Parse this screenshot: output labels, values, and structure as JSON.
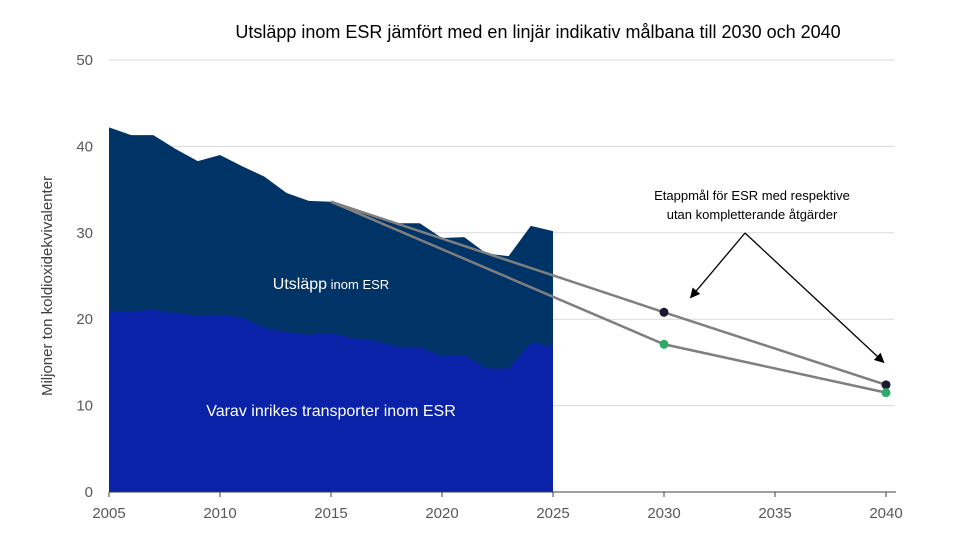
{
  "chart_data": {
    "type": "area",
    "title": "Utsläpp inom ESR jämfört med en linjär indikativ målbana till 2030 och 2040",
    "ylabel": "Miljoner ton koldioxidekvivalenter",
    "xlabel": "",
    "xlim": [
      2005,
      2040
    ],
    "ylim": [
      0,
      50
    ],
    "x_ticks": [
      2005,
      2010,
      2015,
      2020,
      2025,
      2030,
      2035,
      2040
    ],
    "y_ticks": [
      0,
      10,
      20,
      30,
      40,
      50
    ],
    "grid": true,
    "colors": {
      "total_area": "#003366",
      "transport_area": "#0a22a8",
      "trajectory_line": "#7f7f7f",
      "point_with": "#1a1a2e",
      "point_without": "#2eaa6a",
      "grid": "#d9d9d9"
    },
    "series": [
      {
        "name": "Utsläpp inom ESR",
        "type": "area",
        "x": [
          2005,
          2006,
          2007,
          2008,
          2009,
          2010,
          2011,
          2012,
          2013,
          2014,
          2015,
          2016,
          2017,
          2018,
          2019,
          2020,
          2021,
          2022,
          2023,
          2024,
          2025
        ],
        "values": [
          42.2,
          41.3,
          41.3,
          39.7,
          38.3,
          39.0,
          37.7,
          36.5,
          34.6,
          33.7,
          33.6,
          32.8,
          32.0,
          31.1,
          31.1,
          29.4,
          29.5,
          27.6,
          27.3,
          30.8,
          30.2
        ]
      },
      {
        "name": "Varav inrikes transporter inom ESR",
        "type": "area",
        "x": [
          2005,
          2006,
          2007,
          2008,
          2009,
          2010,
          2011,
          2012,
          2013,
          2014,
          2015,
          2016,
          2017,
          2018,
          2019,
          2020,
          2021,
          2022,
          2023,
          2024,
          2025
        ],
        "values": [
          20.9,
          20.9,
          21.1,
          20.7,
          20.4,
          20.5,
          20.2,
          19.0,
          18.5,
          18.2,
          18.4,
          17.8,
          17.5,
          16.8,
          16.8,
          15.7,
          15.9,
          14.3,
          14.3,
          17.3,
          16.8
        ]
      },
      {
        "name": "",
        "type": "line",
        "x": [
          2015,
          2030,
          2040
        ],
        "values": [
          33.6,
          20.8,
          12.4
        ]
      },
      {
        "name": "",
        "type": "line",
        "x": [
          2015,
          2030,
          2040
        ],
        "values": [
          33.6,
          17.1,
          11.5
        ]
      }
    ],
    "milestones": [
      {
        "x": 2030,
        "y": 20.8,
        "kind": "with"
      },
      {
        "x": 2040,
        "y": 12.4,
        "kind": "with"
      },
      {
        "x": 2030,
        "y": 17.1,
        "kind": "without"
      },
      {
        "x": 2040,
        "y": 11.5,
        "kind": "without"
      }
    ],
    "labels": {
      "total_main": "Utsläpp",
      "total_small": " inom ESR",
      "transport": "Varav inrikes transporter inom ESR"
    },
    "annotation": {
      "lines": [
        "Etappmål för ESR med respektive",
        "utan kompletterande åtgärder"
      ],
      "arrow_targets": [
        {
          "x": 2031.2,
          "y": 22.5
        },
        {
          "x": 2039.9,
          "y": 15.0
        }
      ]
    }
  }
}
